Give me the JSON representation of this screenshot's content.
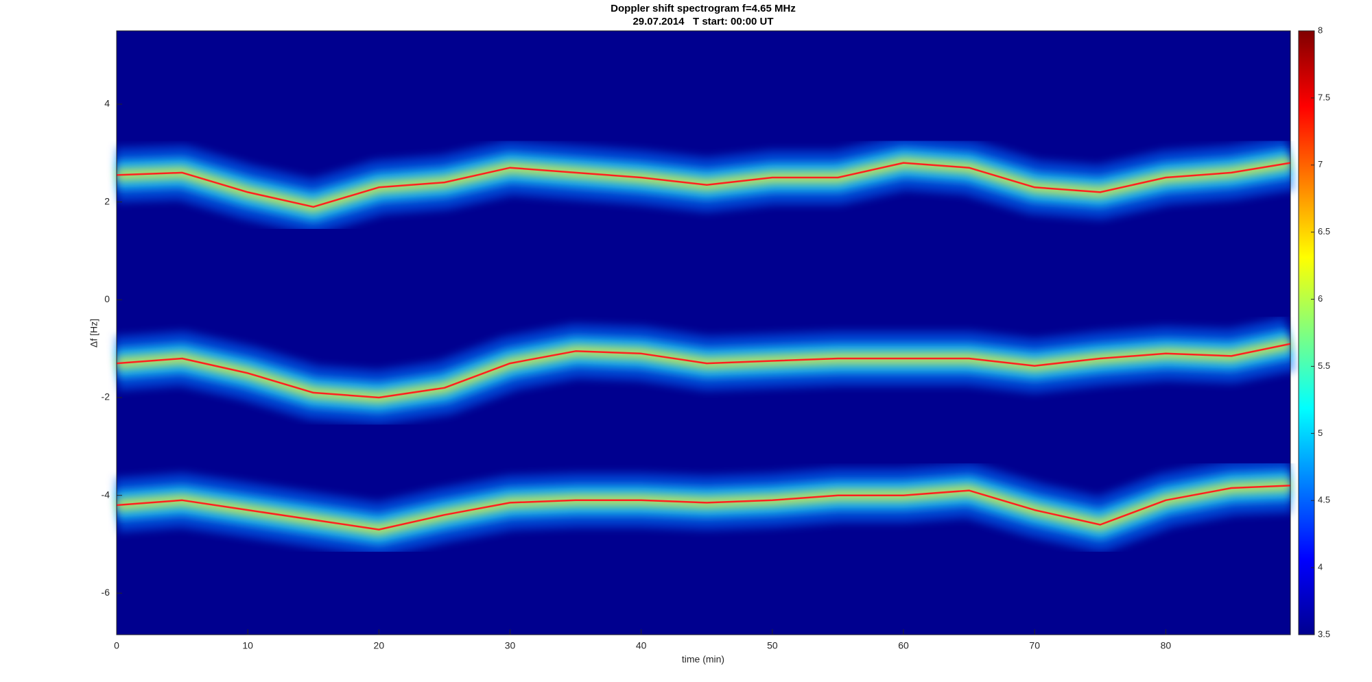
{
  "chart_data": {
    "type": "spectrogram",
    "title": "Doppler shift spectrogram f=4.65 MHz",
    "subtitle": "29.07.2014   T start: 00:00 UT",
    "x_label": "time (min)",
    "y_label": "Δf [Hz]",
    "x": [
      0,
      5,
      10,
      15,
      20,
      25,
      30,
      35,
      40,
      45,
      50,
      55,
      60,
      65,
      70,
      75,
      80,
      85,
      89.5
    ],
    "series": [
      {
        "color": "#ff2020",
        "values": [
          2.55,
          2.6,
          2.2,
          1.9,
          2.3,
          2.4,
          2.7,
          2.6,
          2.5,
          2.35,
          2.5,
          2.5,
          2.8,
          2.7,
          2.3,
          2.2,
          2.5,
          2.6,
          2.8
        ]
      },
      {
        "color": "#ff2020",
        "values": [
          -1.3,
          -1.2,
          -1.5,
          -1.9,
          -2.0,
          -1.8,
          -1.3,
          -1.05,
          -1.1,
          -1.3,
          -1.25,
          -1.2,
          -1.2,
          -1.2,
          -1.35,
          -1.2,
          -1.1,
          -1.15,
          -0.9
        ]
      },
      {
        "color": "#ff2020",
        "values": [
          -4.2,
          -4.1,
          -4.3,
          -4.5,
          -4.7,
          -4.4,
          -4.15,
          -4.1,
          -4.1,
          -4.15,
          -4.1,
          -4.0,
          -4.0,
          -3.9,
          -4.3,
          -4.6,
          -4.1,
          -3.85,
          -3.8
        ]
      }
    ],
    "xlim": [
      0,
      89.5
    ],
    "ylim": [
      -6.85,
      5.5
    ],
    "xticks": [
      0,
      10,
      20,
      30,
      40,
      50,
      60,
      70,
      80
    ],
    "yticks": [
      -6,
      -4,
      -2,
      0,
      2,
      4
    ],
    "clim": [
      3.5,
      8
    ],
    "cticks": [
      3.5,
      4,
      4.5,
      5,
      5.5,
      6,
      6.5,
      7,
      7.5,
      8
    ],
    "background": "#00008f"
  }
}
